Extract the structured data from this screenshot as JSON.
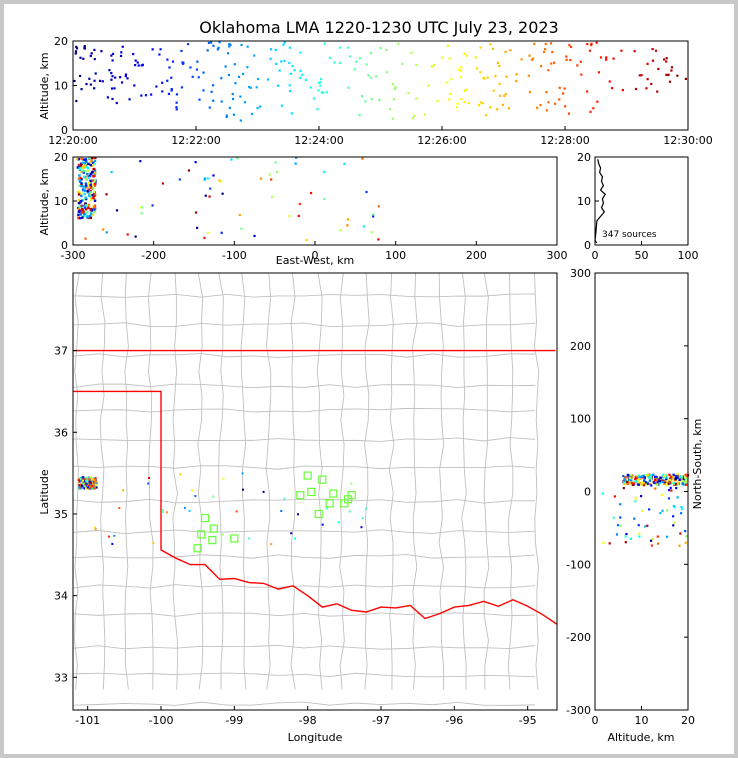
{
  "title": "Oklahoma LMA 1220-1230 UTC July 23, 2023",
  "chart_data": [
    {
      "id": "alt_time",
      "type": "scatter",
      "xlabel": "",
      "ylabel": "Altitude, km",
      "xlim": [
        "12:20:00",
        "12:30:00"
      ],
      "ylim": [
        0,
        20
      ],
      "xticks": [
        "12:20:00",
        "12:22:00",
        "12:24:00",
        "12:26:00",
        "12:28:00",
        "12:30:00"
      ],
      "yticks": [
        "0",
        "10",
        "20"
      ],
      "color_by": "time (blue → red)",
      "clusters": [
        {
          "t_min": 0.0,
          "t_max": 1.6,
          "alt_min": 6,
          "alt_max": 19,
          "n": 70
        },
        {
          "t_min": 1.6,
          "t_max": 3.9,
          "alt_min": 2,
          "alt_max": 20,
          "n": 90
        },
        {
          "t_min": 3.9,
          "t_max": 6.2,
          "alt_min": 2,
          "alt_max": 20,
          "n": 60
        },
        {
          "t_min": 6.2,
          "t_max": 8.6,
          "alt_min": 3,
          "alt_max": 20,
          "n": 90
        },
        {
          "t_min": 8.6,
          "t_max": 10.0,
          "alt_min": 7,
          "alt_max": 19,
          "n": 30
        }
      ]
    },
    {
      "id": "alt_ew",
      "type": "scatter",
      "xlabel": "East-West, km",
      "ylabel": "Altitude, km",
      "xlim": [
        -300,
        300
      ],
      "ylim": [
        0,
        20
      ],
      "xticks": [
        "-300",
        "-200",
        "-100",
        "0",
        "100",
        "200",
        "300"
      ],
      "yticks": [
        "0",
        "10",
        "20"
      ]
    },
    {
      "id": "histogram",
      "type": "line",
      "xlim": [
        0,
        100
      ],
      "ylim": [
        0,
        20
      ],
      "xticks": [
        "0",
        "50",
        "100"
      ],
      "yticks": [
        "0",
        "10",
        "20"
      ],
      "annotation": "347 sources",
      "profile": [
        {
          "alt": 0.5,
          "count": 2
        },
        {
          "alt": 1.0,
          "count": 0
        },
        {
          "alt": 3.0,
          "count": 1
        },
        {
          "alt": 5.5,
          "count": 2
        },
        {
          "alt": 6.5,
          "count": 6
        },
        {
          "alt": 7.5,
          "count": 10
        },
        {
          "alt": 8.5,
          "count": 7
        },
        {
          "alt": 9.5,
          "count": 9
        },
        {
          "alt": 10.5,
          "count": 8
        },
        {
          "alt": 11.5,
          "count": 11
        },
        {
          "alt": 12.5,
          "count": 6
        },
        {
          "alt": 13.5,
          "count": 9
        },
        {
          "alt": 14.5,
          "count": 7
        },
        {
          "alt": 15.5,
          "count": 8
        },
        {
          "alt": 16.5,
          "count": 5
        },
        {
          "alt": 17.5,
          "count": 6
        },
        {
          "alt": 18.5,
          "count": 4
        },
        {
          "alt": 19.5,
          "count": 3
        }
      ]
    },
    {
      "id": "plan_view",
      "type": "scatter",
      "xlabel": "Longitude",
      "ylabel": "Latitude",
      "xlim": [
        -101.2,
        -94.6
      ],
      "ylim": [
        32.6,
        37.95
      ],
      "xticks": [
        "-101",
        "-100",
        "-99",
        "-98",
        "-97",
        "-96",
        "-95"
      ],
      "yticks": [
        "33",
        "34",
        "35",
        "36",
        "37"
      ],
      "stations": [
        {
          "lon": -99.0,
          "lat": 34.7
        },
        {
          "lon": -99.4,
          "lat": 34.95
        },
        {
          "lon": -99.3,
          "lat": 34.68
        },
        {
          "lon": -99.5,
          "lat": 34.58
        },
        {
          "lon": -99.45,
          "lat": 34.75
        },
        {
          "lon": -99.28,
          "lat": 34.82
        },
        {
          "lon": -98.0,
          "lat": 35.47
        },
        {
          "lon": -97.8,
          "lat": 35.42
        },
        {
          "lon": -98.1,
          "lat": 35.23
        },
        {
          "lon": -97.65,
          "lat": 35.25
        },
        {
          "lon": -97.85,
          "lat": 35.0
        },
        {
          "lon": -97.7,
          "lat": 35.13
        },
        {
          "lon": -97.5,
          "lat": 35.13
        },
        {
          "lon": -97.4,
          "lat": 35.23
        },
        {
          "lon": -97.45,
          "lat": 35.18
        },
        {
          "lon": -97.95,
          "lat": 35.27
        }
      ]
    },
    {
      "id": "alt_ns",
      "type": "scatter",
      "xlabel": "Altitude, km",
      "ylabel": "North-South, km",
      "xlim": [
        0,
        20
      ],
      "ylim": [
        -300,
        300
      ],
      "xticks": [
        "0",
        "10",
        "20"
      ],
      "yticks": [
        "-300",
        "-200",
        "-100",
        "0",
        "100",
        "200",
        "300"
      ]
    }
  ],
  "colors": {
    "ok_border": "#ff0000",
    "county": "#c0c0c0",
    "station": "#66ff33",
    "frame_bg": "#c8c8c8"
  }
}
